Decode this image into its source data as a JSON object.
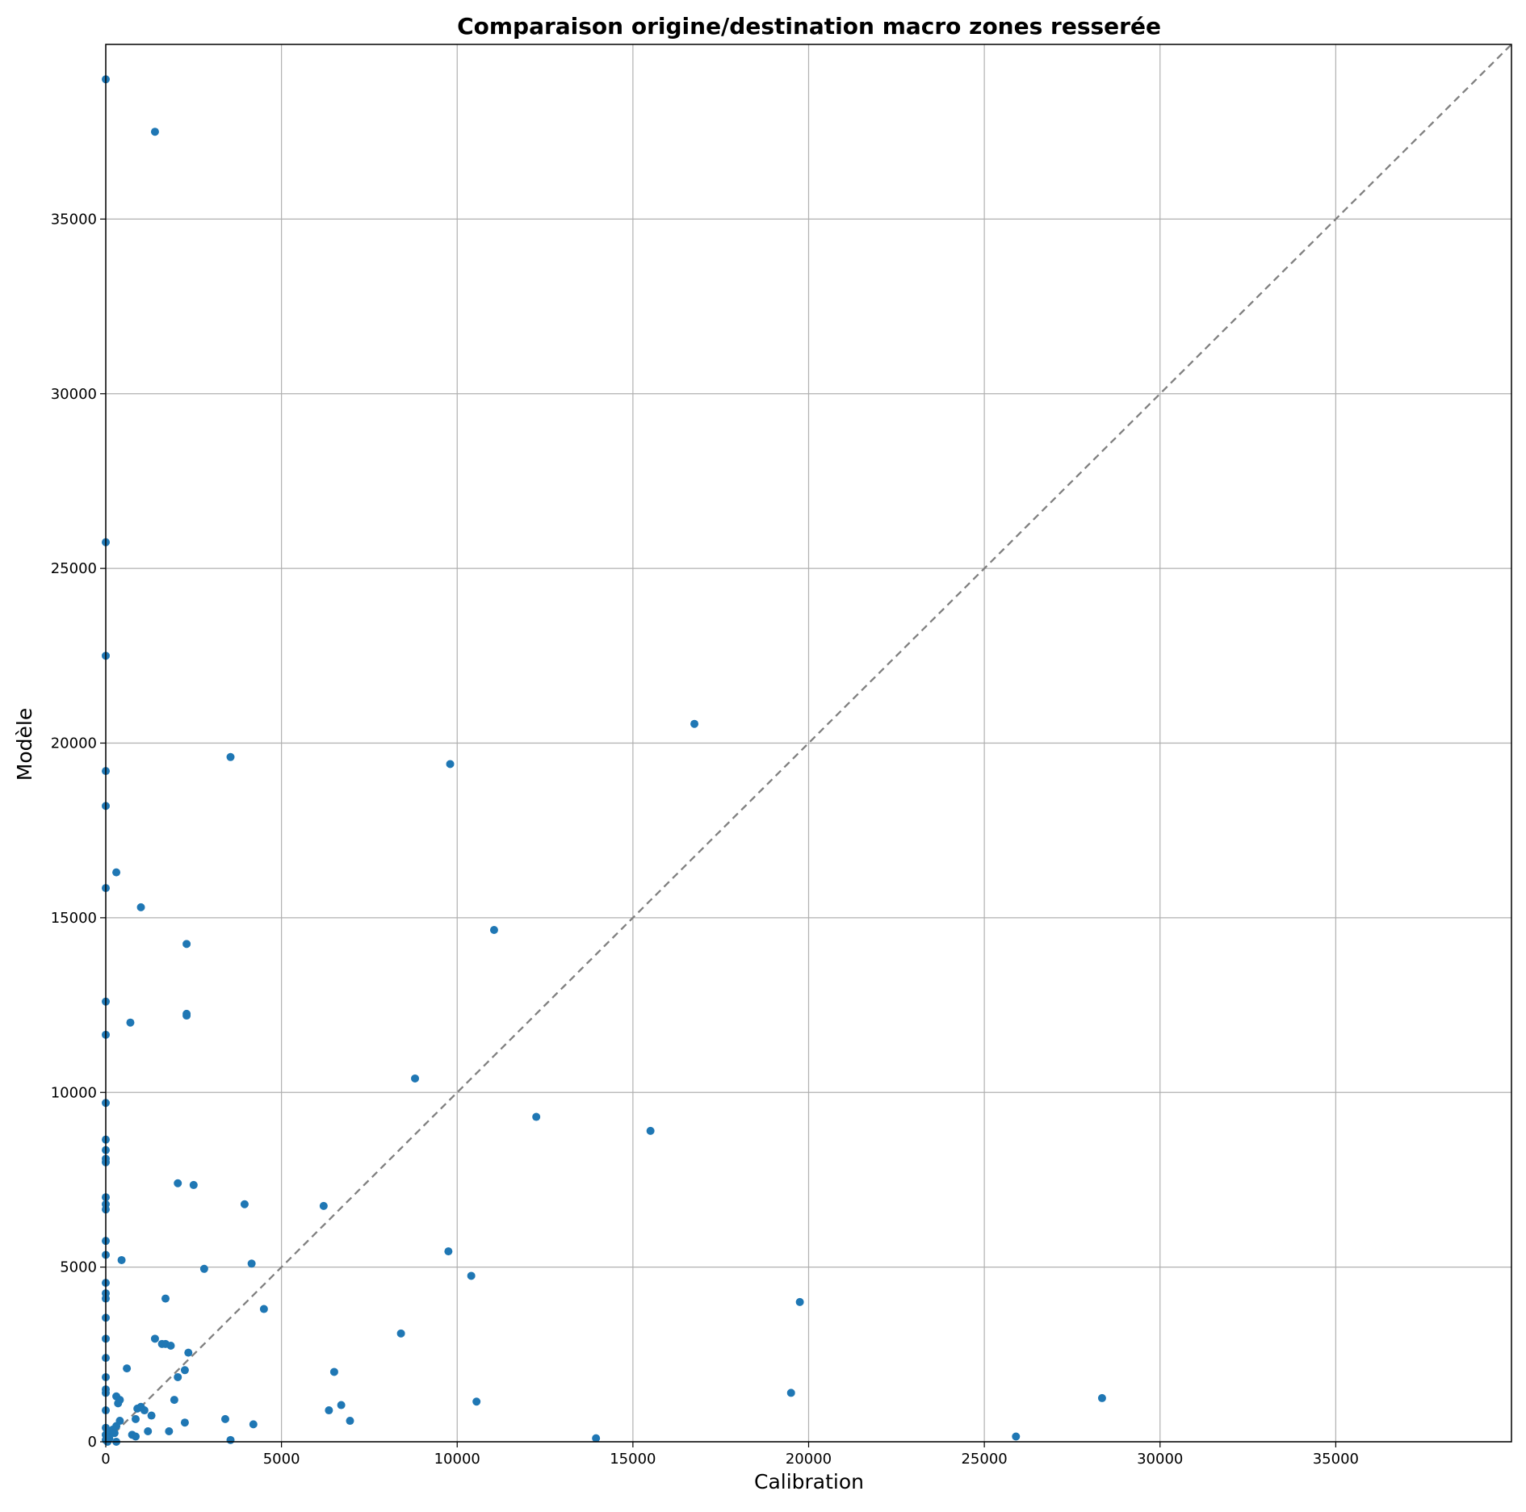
{
  "chart_data": {
    "type": "scatter",
    "title": "Comparaison origine/destination macro zones resserée",
    "xlabel": "Calibration",
    "ylabel": "Modèle",
    "xlim": [
      0,
      40000
    ],
    "ylim": [
      0,
      40000
    ],
    "x_ticks": [
      0,
      5000,
      10000,
      15000,
      20000,
      25000,
      30000,
      35000
    ],
    "y_ticks": [
      0,
      5000,
      10000,
      15000,
      20000,
      25000,
      30000,
      35000
    ],
    "grid": true,
    "legend": "none",
    "point_color": "#1f77b4",
    "reference_line": {
      "style": "dashed",
      "color": "#808080",
      "from": [
        0,
        0
      ],
      "to": [
        40000,
        40000
      ]
    },
    "points": [
      [
        0,
        39000
      ],
      [
        1400,
        37500
      ],
      [
        0,
        25750
      ],
      [
        0,
        22500
      ],
      [
        16750,
        20550
      ],
      [
        3550,
        19600
      ],
      [
        9800,
        19400
      ],
      [
        0,
        19200
      ],
      [
        0,
        18200
      ],
      [
        300,
        16300
      ],
      [
        0,
        15850
      ],
      [
        1000,
        15300
      ],
      [
        11050,
        14650
      ],
      [
        2300,
        14250
      ],
      [
        0,
        12600
      ],
      [
        2300,
        12200
      ],
      [
        2300,
        12250
      ],
      [
        700,
        12000
      ],
      [
        0,
        11650
      ],
      [
        8800,
        10400
      ],
      [
        0,
        9700
      ],
      [
        12250,
        9300
      ],
      [
        15500,
        8900
      ],
      [
        0,
        8650
      ],
      [
        0,
        8350
      ],
      [
        0,
        8000
      ],
      [
        0,
        8100
      ],
      [
        2050,
        7400
      ],
      [
        2500,
        7350
      ],
      [
        0,
        7000
      ],
      [
        3950,
        6800
      ],
      [
        6200,
        6750
      ],
      [
        0,
        6800
      ],
      [
        0,
        6650
      ],
      [
        0,
        5750
      ],
      [
        9750,
        5450
      ],
      [
        0,
        5350
      ],
      [
        450,
        5200
      ],
      [
        4150,
        5100
      ],
      [
        2800,
        4950
      ],
      [
        10400,
        4750
      ],
      [
        0,
        4550
      ],
      [
        0,
        4250
      ],
      [
        1700,
        4100
      ],
      [
        0,
        4100
      ],
      [
        19750,
        4000
      ],
      [
        4500,
        3800
      ],
      [
        0,
        3550
      ],
      [
        8400,
        3100
      ],
      [
        0,
        2950
      ],
      [
        1400,
        2950
      ],
      [
        1700,
        2800
      ],
      [
        1600,
        2800
      ],
      [
        1850,
        2750
      ],
      [
        2350,
        2550
      ],
      [
        0,
        2400
      ],
      [
        600,
        2100
      ],
      [
        6500,
        2000
      ],
      [
        2250,
        2050
      ],
      [
        2050,
        1850
      ],
      [
        0,
        1850
      ],
      [
        0,
        1500
      ],
      [
        0,
        1400
      ],
      [
        19500,
        1400
      ],
      [
        300,
        1300
      ],
      [
        28350,
        1250
      ],
      [
        1950,
        1200
      ],
      [
        400,
        1200
      ],
      [
        10550,
        1150
      ],
      [
        350,
        1100
      ],
      [
        6700,
        1050
      ],
      [
        1000,
        1000
      ],
      [
        900,
        950
      ],
      [
        1100,
        900
      ],
      [
        6350,
        900
      ],
      [
        0,
        900
      ],
      [
        1300,
        750
      ],
      [
        3400,
        650
      ],
      [
        850,
        650
      ],
      [
        400,
        600
      ],
      [
        6950,
        600
      ],
      [
        2250,
        550
      ],
      [
        4200,
        500
      ],
      [
        300,
        450
      ],
      [
        0,
        400
      ],
      [
        200,
        350
      ],
      [
        1200,
        300
      ],
      [
        1800,
        300
      ],
      [
        100,
        300
      ],
      [
        250,
        250
      ],
      [
        750,
        200
      ],
      [
        850,
        150
      ],
      [
        0,
        200
      ],
      [
        13950,
        100
      ],
      [
        25900,
        150
      ],
      [
        3550,
        50
      ],
      [
        0,
        50
      ],
      [
        100,
        100
      ],
      [
        300,
        0
      ],
      [
        50,
        0
      ]
    ]
  }
}
